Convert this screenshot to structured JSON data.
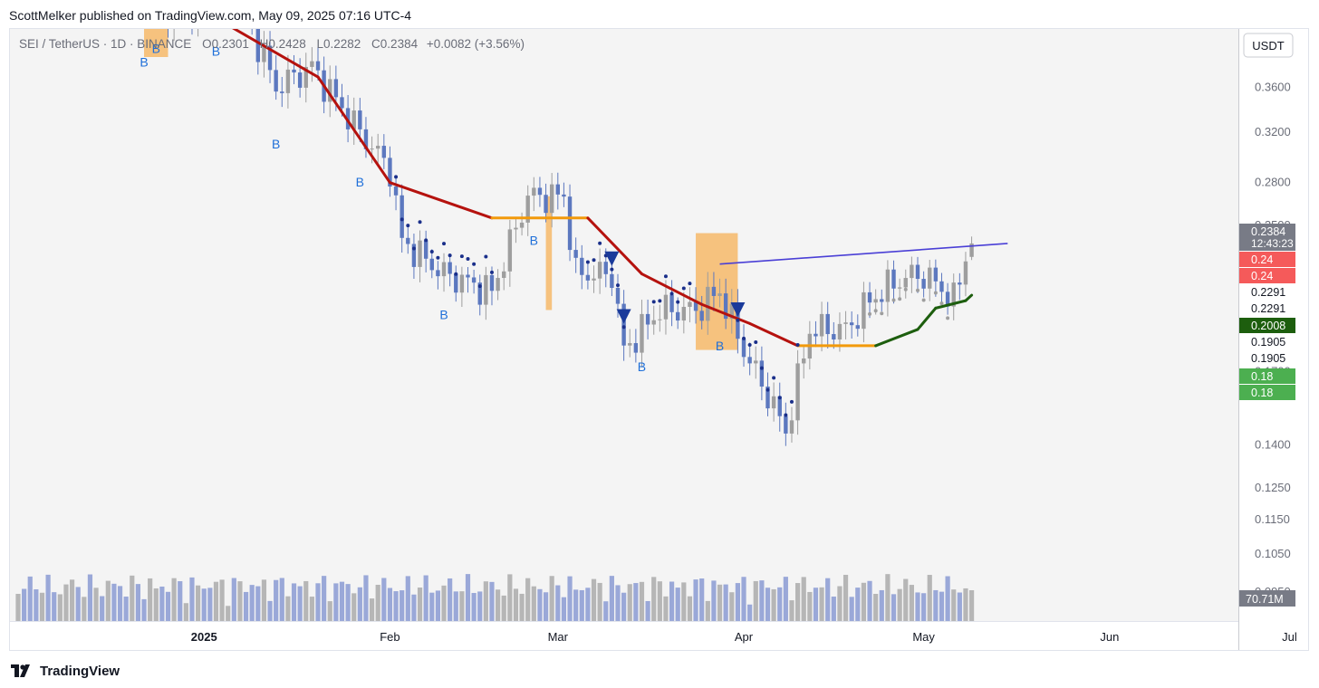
{
  "header": {
    "published_by": "ScottMelker published on TradingView.com, May 09, 2025 07:16 UTC-4"
  },
  "legend": {
    "symbol": "SEI / TetherUS · 1D · BINANCE",
    "open_label": "O",
    "open": "0.2301",
    "high_label": "H",
    "high": "0.2428",
    "low_label": "L",
    "low": "0.2282",
    "close_label": "C",
    "close": "0.2384",
    "change": "+0.0082 (+3.56%)"
  },
  "currency": "USDT",
  "brand": "TradingView",
  "colors": {
    "bg": "#f4f4f4",
    "up": "#9e9e9e",
    "down": "#5c78bf",
    "trend_red": "#b5120e",
    "trend_orange": "#f29a0b",
    "trend_green": "#1d5e0e",
    "trendline": "#4a3fd6",
    "signal_b": "#1e6fd9",
    "signal_triangle": "#1a3a9a",
    "dots": "#1a2f8a",
    "zone": "#f7ad4c"
  },
  "price_axis": {
    "ticks": [
      "0.3600",
      "0.3200",
      "0.2800",
      "0.2500",
      "0.2100",
      "0.1700",
      "0.1400",
      "0.1250",
      "0.1150",
      "0.1050",
      "0.0950"
    ],
    "labels": [
      {
        "text": "0.2384",
        "sub": "12:43:23",
        "bg": "#787b86",
        "fg": "#ffffff"
      },
      {
        "text": "0.24",
        "bg": "#f55a5a",
        "fg": "#ffffff"
      },
      {
        "text": "0.24",
        "bg": "#f55a5a",
        "fg": "#ffffff"
      },
      {
        "text": "0.2291",
        "bg": "#ffffff",
        "fg": "#131722"
      },
      {
        "text": "0.2291",
        "bg": "#ffffff",
        "fg": "#131722"
      },
      {
        "text": "0.2008",
        "bg": "#1d5e0e",
        "fg": "#ffffff"
      },
      {
        "text": "0.1905",
        "bg": "#ffffff",
        "fg": "#131722"
      },
      {
        "text": "0.1905",
        "bg": "#ffffff",
        "fg": "#131722"
      },
      {
        "text": "0.18",
        "bg": "#4caf50",
        "fg": "#ffffff"
      },
      {
        "text": "0.18",
        "bg": "#4caf50",
        "fg": "#ffffff"
      }
    ],
    "volume_label": "70.71M"
  },
  "time_axis": [
    "2025",
    "Feb",
    "Mar",
    "Apr",
    "May",
    "Jun",
    "Jul"
  ],
  "signals": {
    "buy_label": "B"
  },
  "chart_data": {
    "type": "candlestick",
    "symbol": "SEI / TetherUS",
    "interval": "1D",
    "exchange": "BINANCE",
    "price_scale": "log",
    "ylim": [
      0.088,
      0.4
    ],
    "anchors": [
      {
        "date": "2024-12-18",
        "close": 0.47
      },
      {
        "date": "2024-12-28",
        "close": 0.44
      },
      {
        "date": "2025-01-06",
        "close": 0.47
      },
      {
        "date": "2025-01-13",
        "close": 0.36
      },
      {
        "date": "2025-01-19",
        "close": 0.38
      },
      {
        "date": "2025-01-27",
        "close": 0.32
      },
      {
        "date": "2025-02-01",
        "close": 0.29
      },
      {
        "date": "2025-02-03",
        "close": 0.24
      },
      {
        "date": "2025-02-10",
        "close": 0.22
      },
      {
        "date": "2025-02-18",
        "close": 0.21
      },
      {
        "date": "2025-02-24",
        "close": 0.27
      },
      {
        "date": "2025-03-02",
        "close": 0.27
      },
      {
        "date": "2025-03-04",
        "close": 0.22
      },
      {
        "date": "2025-03-10",
        "close": 0.22
      },
      {
        "date": "2025-03-12",
        "close": 0.18
      },
      {
        "date": "2025-03-18",
        "close": 0.2
      },
      {
        "date": "2025-03-24",
        "close": 0.2
      },
      {
        "date": "2025-03-28",
        "close": 0.21
      },
      {
        "date": "2025-04-01",
        "close": 0.18
      },
      {
        "date": "2025-04-06",
        "close": 0.155
      },
      {
        "date": "2025-04-08",
        "close": 0.145
      },
      {
        "date": "2025-04-12",
        "close": 0.19
      },
      {
        "date": "2025-04-18",
        "close": 0.19
      },
      {
        "date": "2025-04-22",
        "close": 0.205
      },
      {
        "date": "2025-04-26",
        "close": 0.215
      },
      {
        "date": "2025-04-30",
        "close": 0.22
      },
      {
        "date": "2025-05-03",
        "close": 0.215
      },
      {
        "date": "2025-05-06",
        "close": 0.205
      },
      {
        "date": "2025-05-08",
        "close": 0.2302
      },
      {
        "date": "2025-05-09",
        "close": 0.2384
      }
    ],
    "last_candle": {
      "date": "2025-05-09",
      "open": 0.2301,
      "high": 0.2428,
      "low": 0.2282,
      "close": 0.2384,
      "volume_millions": 70.71
    },
    "trend_line": [
      {
        "date": "2024-12-18",
        "value": 0.5
      },
      {
        "date": "2025-01-20",
        "value": 0.37
      },
      {
        "date": "2025-02-01",
        "value": 0.28
      },
      {
        "date": "2025-02-18",
        "value": 0.255
      },
      {
        "date": "2025-03-06",
        "value": 0.255
      },
      {
        "date": "2025-03-15",
        "value": 0.22
      },
      {
        "date": "2025-03-25",
        "value": 0.203
      },
      {
        "date": "2025-04-02",
        "value": 0.193
      },
      {
        "date": "2025-04-10",
        "value": 0.182
      },
      {
        "date": "2025-04-23",
        "value": 0.182
      },
      {
        "date": "2025-04-30",
        "value": 0.19
      },
      {
        "date": "2025-05-03",
        "value": 0.201
      },
      {
        "date": "2025-05-08",
        "value": 0.205
      },
      {
        "date": "2025-05-09",
        "value": 0.208
      }
    ],
    "resistance_line": [
      {
        "date": "2025-03-28",
        "value": 0.2258
      },
      {
        "date": "2025-05-15",
        "value": 0.2384
      }
    ],
    "buy_signals": [
      "2024-12-22",
      "2024-12-24",
      "2025-01-03",
      "2025-01-13",
      "2025-01-27",
      "2025-02-10",
      "2025-02-25",
      "2025-03-15",
      "2025-03-28"
    ],
    "sell_signals": [
      "2025-03-10",
      "2025-03-12",
      "2025-03-31"
    ],
    "x_axis_labels": [
      "2025",
      "Feb",
      "Mar",
      "Apr",
      "May",
      "Jun",
      "Jul"
    ],
    "price_ticks": [
      0.36,
      0.32,
      0.28,
      0.25,
      0.21,
      0.17,
      0.14,
      0.125,
      0.115,
      0.105,
      0.095
    ]
  }
}
